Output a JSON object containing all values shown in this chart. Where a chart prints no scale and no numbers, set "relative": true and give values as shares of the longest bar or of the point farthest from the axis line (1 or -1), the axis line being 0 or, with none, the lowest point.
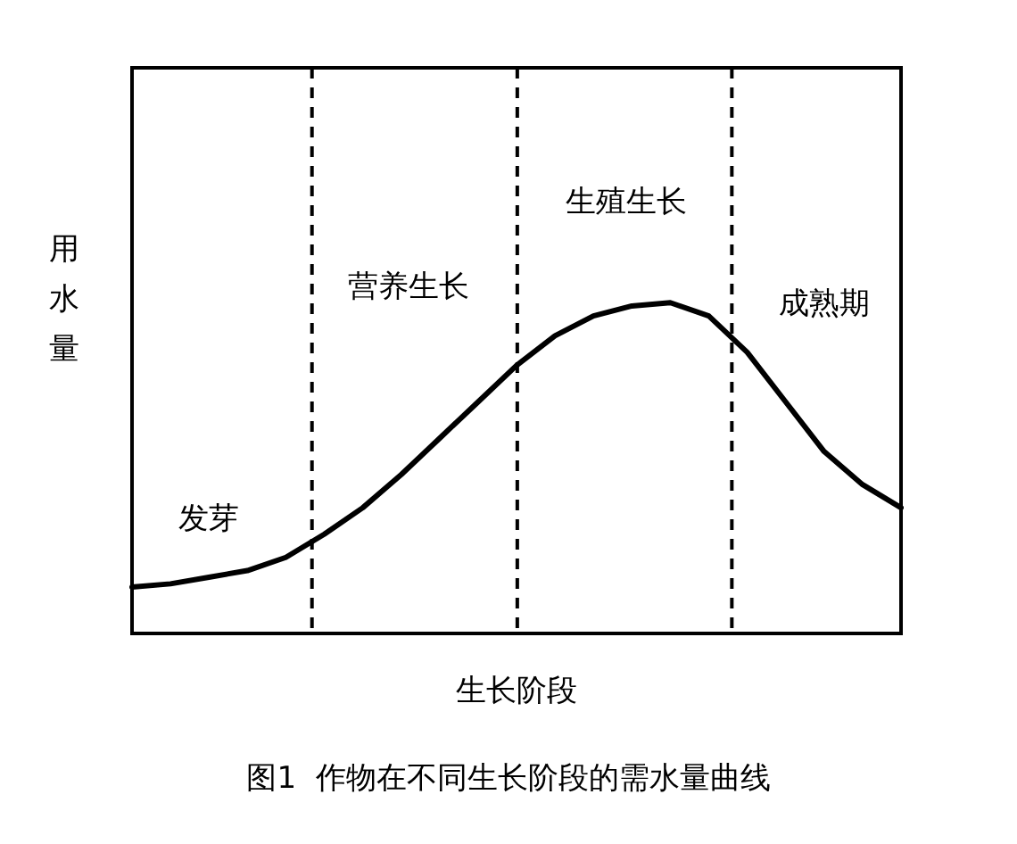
{
  "chart_data": {
    "type": "line",
    "relative": true,
    "title": "图1  作物在不同生长阶段的需水量曲线",
    "xlabel": "生长阶段",
    "ylabel": "用水量",
    "tick_labels": false,
    "legend": false,
    "marker": "none",
    "line_style": "solid",
    "categories": [
      null,
      null,
      null,
      null,
      null,
      null,
      null,
      null,
      null,
      null,
      null,
      null,
      null,
      null,
      null,
      null,
      null,
      null,
      null,
      null,
      null
    ],
    "series": [
      {
        "color": "#000000",
        "values": [
          0.14,
          0.15,
          0.17,
          0.19,
          0.23,
          0.3,
          0.38,
          0.48,
          0.59,
          0.7,
          0.81,
          0.9,
          0.96,
          0.99,
          1,
          0.96,
          0.85,
          0.7,
          0.55,
          0.45,
          0.38
        ]
      }
    ],
    "annotations": [
      "发芽",
      "营养生长",
      "生殖生长",
      "成熟期"
    ]
  }
}
